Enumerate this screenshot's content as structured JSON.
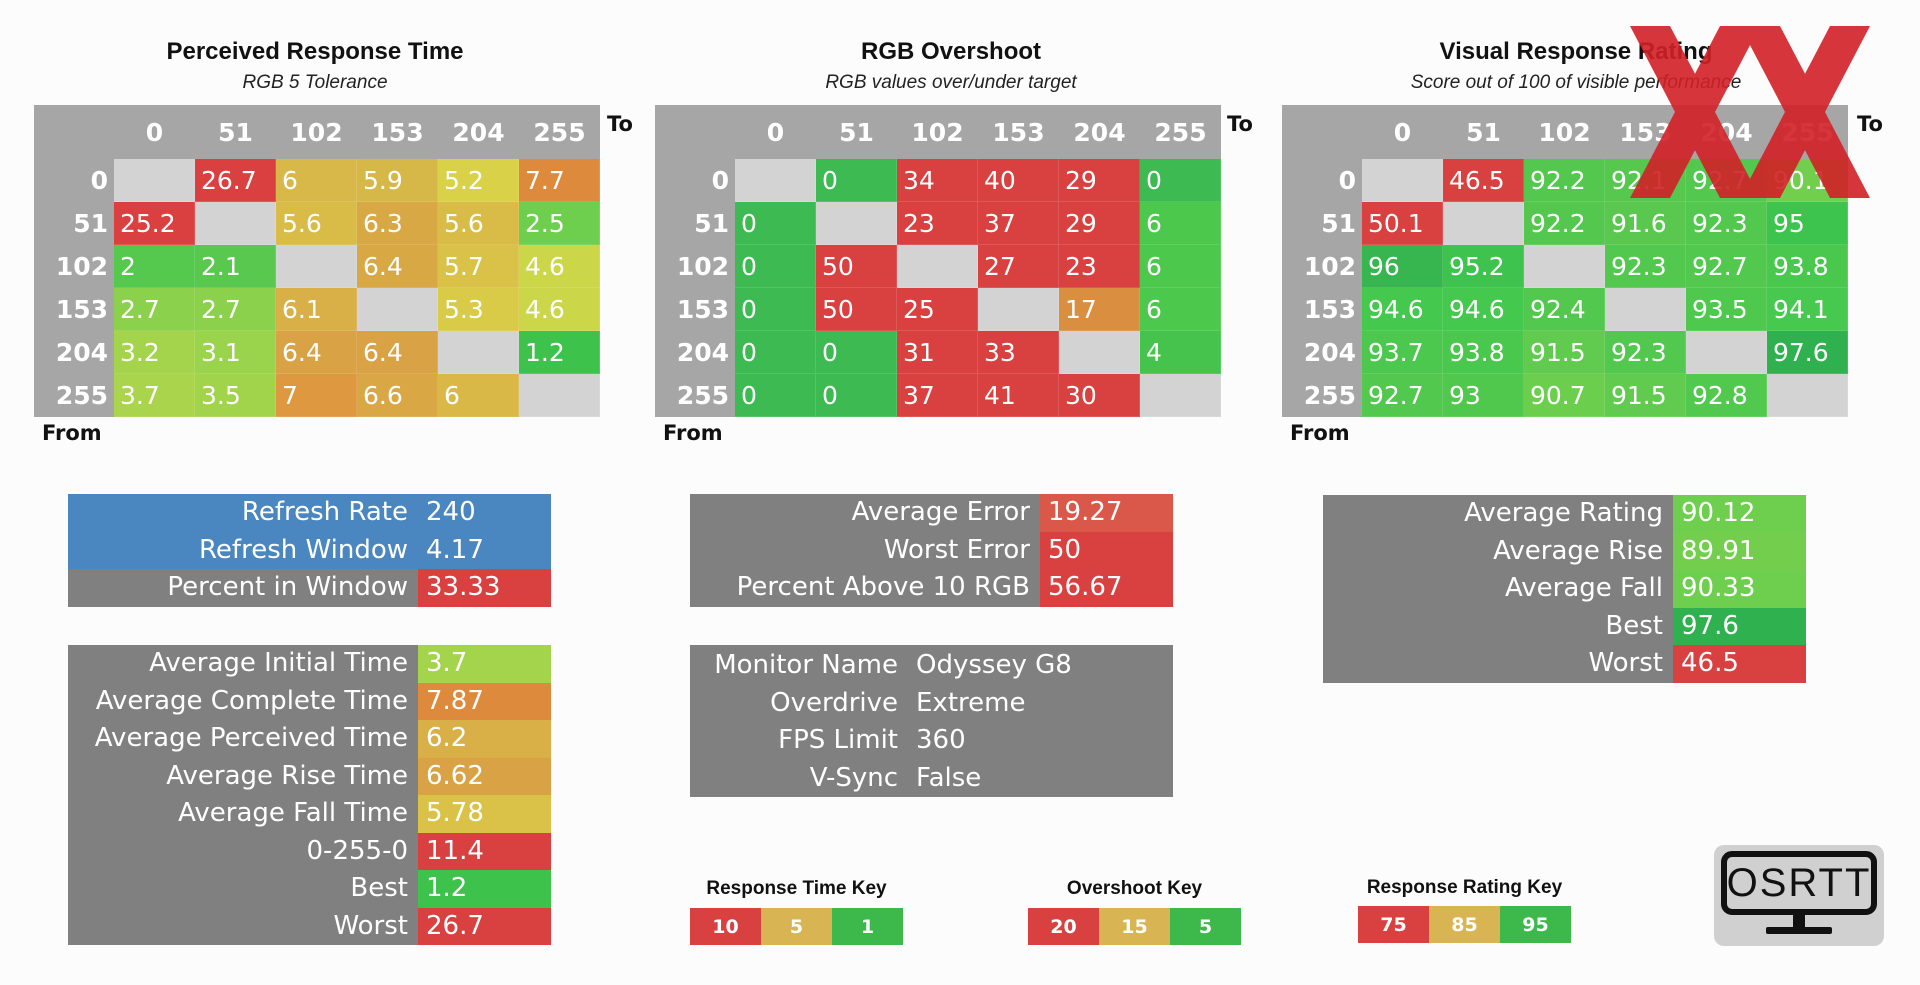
{
  "chart_data": [
    {
      "type": "heatmap",
      "title": "Perceived Response Time",
      "subtitle": "RGB 5 Tolerance",
      "xlabel": "To",
      "ylabel": "From",
      "x": [
        "0",
        "51",
        "102",
        "153",
        "204",
        "255"
      ],
      "y": [
        "0",
        "51",
        "102",
        "153",
        "204",
        "255"
      ],
      "values": [
        [
          "",
          "26.7",
          "6",
          "5.9",
          "5.2",
          "7.7"
        ],
        [
          "25.2",
          "",
          "5.6",
          "6.3",
          "5.6",
          "2.5"
        ],
        [
          "2",
          "2.1",
          "",
          "6.4",
          "5.7",
          "4.6"
        ],
        [
          "2.7",
          "2.7",
          "6.1",
          "",
          "5.3",
          "4.6"
        ],
        [
          "3.2",
          "3.1",
          "6.4",
          "6.4",
          "",
          "1.2"
        ],
        [
          "3.7",
          "3.5",
          "7",
          "6.6",
          "6",
          ""
        ]
      ],
      "colors": [
        [
          "#d3d3d3",
          "#db4040",
          "#d9b84a",
          "#d6b848",
          "#d9d147",
          "#de8a3c"
        ],
        [
          "#db4040",
          "#d3d3d3",
          "#d9bb48",
          "#d8a845",
          "#d9bb48",
          "#6ece4e"
        ],
        [
          "#55c84e",
          "#59c84e",
          "#d3d3d3",
          "#d8a845",
          "#d9c247",
          "#cbd648"
        ],
        [
          "#8cd14c",
          "#8cd14c",
          "#d9b048",
          "#d3d3d3",
          "#d9ca47",
          "#cbd648"
        ],
        [
          "#a3d44b",
          "#9ad44c",
          "#d9a245",
          "#d9a245",
          "#d3d3d3",
          "#3dc34b"
        ],
        [
          "#aad44b",
          "#a1d44b",
          "#dd9840",
          "#d9a845",
          "#d9b848",
          "#d3d3d3"
        ]
      ]
    },
    {
      "type": "heatmap",
      "title": "RGB Overshoot",
      "subtitle": "RGB values over/under target",
      "xlabel": "To",
      "ylabel": "From",
      "x": [
        "0",
        "51",
        "102",
        "153",
        "204",
        "255"
      ],
      "y": [
        "0",
        "51",
        "102",
        "153",
        "204",
        "255"
      ],
      "values": [
        [
          "",
          "0",
          "34",
          "40",
          "29",
          "0"
        ],
        [
          "0",
          "",
          "23",
          "37",
          "29",
          "6"
        ],
        [
          "0",
          "50",
          "",
          "27",
          "23",
          "6"
        ],
        [
          "0",
          "50",
          "25",
          "",
          "17",
          "6"
        ],
        [
          "0",
          "0",
          "31",
          "33",
          "",
          "4"
        ],
        [
          "0",
          "0",
          "37",
          "41",
          "30",
          ""
        ]
      ],
      "colors": [
        [
          "#d3d3d3",
          "#3dba52",
          "#d94141",
          "#d94141",
          "#d94141",
          "#3dba52"
        ],
        [
          "#3dba52",
          "#d3d3d3",
          "#d94141",
          "#d94141",
          "#d94141",
          "#4cc84c"
        ],
        [
          "#3dba52",
          "#d94141",
          "#d3d3d3",
          "#d94141",
          "#d94141",
          "#4cc84c"
        ],
        [
          "#3dba52",
          "#d94141",
          "#d94141",
          "#d3d3d3",
          "#d98f3f",
          "#4cc84c"
        ],
        [
          "#3dba52",
          "#3dba52",
          "#d94141",
          "#d94141",
          "#d3d3d3",
          "#45c34d"
        ],
        [
          "#3dba52",
          "#3dba52",
          "#d94141",
          "#d94141",
          "#d94141",
          "#d3d3d3"
        ]
      ]
    },
    {
      "type": "heatmap",
      "title": "Visual Response Rating",
      "subtitle": "Score out of 100 of visible performance",
      "xlabel": "To",
      "ylabel": "From",
      "x": [
        "0",
        "51",
        "102",
        "153",
        "204",
        "255"
      ],
      "y": [
        "0",
        "51",
        "102",
        "153",
        "204",
        "255"
      ],
      "values": [
        [
          "",
          "46.5",
          "92.2",
          "92.1",
          "92.7",
          "90.1"
        ],
        [
          "50.1",
          "",
          "92.2",
          "91.6",
          "92.3",
          "95"
        ],
        [
          "96",
          "95.2",
          "",
          "92.3",
          "92.7",
          "93.8"
        ],
        [
          "94.6",
          "94.6",
          "92.4",
          "",
          "93.5",
          "94.1"
        ],
        [
          "93.7",
          "93.8",
          "91.5",
          "92.3",
          "",
          "97.6"
        ],
        [
          "92.7",
          "93",
          "90.7",
          "91.5",
          "92.8",
          ""
        ]
      ],
      "colors": [
        [
          "#d3d3d3",
          "#d94141",
          "#54c84e",
          "#56c84e",
          "#52c84e",
          "#72ce4d"
        ],
        [
          "#d94141",
          "#d3d3d3",
          "#54c84e",
          "#5ac84e",
          "#53c84e",
          "#3dc44e"
        ],
        [
          "#37b64f",
          "#3dc34e",
          "#d3d3d3",
          "#53c84e",
          "#52c84e",
          "#4ac84e"
        ],
        [
          "#44c84e",
          "#44c84e",
          "#53c84e",
          "#d3d3d3",
          "#4fc84e",
          "#47c84e"
        ],
        [
          "#4dc84e",
          "#4ac84e",
          "#60cb4e",
          "#53c84e",
          "#d3d3d3",
          "#2fb150"
        ],
        [
          "#52c84e",
          "#50c84e",
          "#6cce4d",
          "#60cb4e",
          "#51c84e",
          "#d3d3d3"
        ]
      ]
    }
  ],
  "stats": {
    "refresh": [
      {
        "label": "Refresh Rate",
        "value": "240",
        "bg": "#4a86bf",
        "vbg": "#4a86bf"
      },
      {
        "label": "Refresh Window",
        "value": "4.17",
        "bg": "#4a86bf",
        "vbg": "#4a86bf"
      },
      {
        "label": "Percent in Window",
        "value": "33.33",
        "bg": "#808080",
        "vbg": "#d94141"
      }
    ],
    "response": [
      {
        "label": "Average Initial Time",
        "value": "3.7",
        "vbg": "#a3d44b"
      },
      {
        "label": "Average Complete Time",
        "value": "7.87",
        "vbg": "#de8a3c"
      },
      {
        "label": "Average Perceived Time",
        "value": "6.2",
        "vbg": "#d9b048"
      },
      {
        "label": "Average Rise Time",
        "value": "6.62",
        "vbg": "#d9a245"
      },
      {
        "label": "Average Fall Time",
        "value": "5.78",
        "vbg": "#d9c247"
      },
      {
        "label": "0-255-0",
        "value": "11.4",
        "vbg": "#d94141"
      },
      {
        "label": "Best",
        "value": "1.2",
        "vbg": "#3dc34b"
      },
      {
        "label": "Worst",
        "value": "26.7",
        "vbg": "#d94141"
      }
    ],
    "overshoot": [
      {
        "label": "Average Error",
        "value": "19.27",
        "vbg": "#d9584a"
      },
      {
        "label": "Worst Error",
        "value": "50",
        "vbg": "#d94141"
      },
      {
        "label": "Percent Above 10 RGB",
        "value": "56.67",
        "vbg": "#d94141"
      }
    ],
    "monitor": [
      {
        "label": "Monitor Name",
        "value": "Odyssey G8"
      },
      {
        "label": "Overdrive",
        "value": "Extreme"
      },
      {
        "label": "FPS Limit",
        "value": "360"
      },
      {
        "label": "V-Sync",
        "value": "False"
      }
    ],
    "rating": [
      {
        "label": "Average Rating",
        "value": "90.12",
        "vbg": "#6ece4e"
      },
      {
        "label": "Average Rise",
        "value": "89.91",
        "vbg": "#74ce4d"
      },
      {
        "label": "Average Fall",
        "value": "90.33",
        "vbg": "#6ece4e"
      },
      {
        "label": "Best",
        "value": "97.6",
        "vbg": "#2fb150"
      },
      {
        "label": "Worst",
        "value": "46.5",
        "vbg": "#d94141"
      }
    ]
  },
  "keys": [
    {
      "title": "Response Time Key",
      "values": [
        "10",
        "5",
        "1"
      ],
      "colors": [
        "#d94141",
        "#d9b452",
        "#3db84b"
      ]
    },
    {
      "title": "Overshoot Key",
      "values": [
        "20",
        "15",
        "5"
      ],
      "colors": [
        "#d94141",
        "#d9b452",
        "#3db84b"
      ]
    },
    {
      "title": "Response Rating Key",
      "values": [
        "75",
        "85",
        "95"
      ],
      "colors": [
        "#d94141",
        "#d9b452",
        "#3db84b"
      ]
    }
  ],
  "logo": {
    "text": "OSRTT"
  },
  "watermark_color": "#d22027"
}
